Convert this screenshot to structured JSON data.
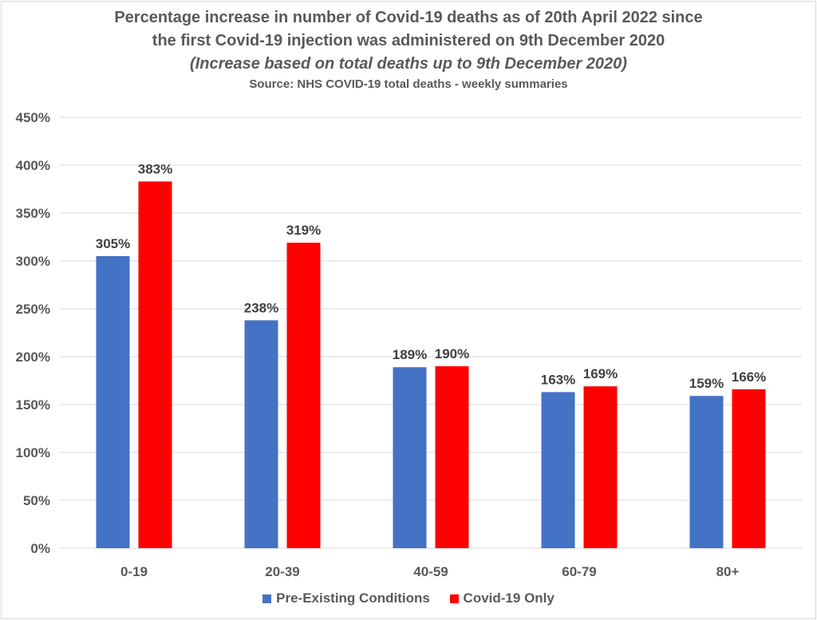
{
  "colors": {
    "series_1": "#4472c4",
    "series_2": "#ff0000",
    "grid": "#d9d9d9",
    "text": "#595959"
  },
  "chart_data": {
    "type": "bar",
    "title_lines": [
      "Percentage increase in number of Covid-19 deaths as of 20th April 2022 since",
      "the first Covid-19 injection was administered on 9th December 2020"
    ],
    "subtitle": "(Increase based on total deaths up to 9th December 2020)",
    "source": "Source: NHS COVID-19 total deaths - weekly summaries",
    "categories": [
      "0-19",
      "20-39",
      "40-59",
      "60-79",
      "80+"
    ],
    "series": [
      {
        "name": "Pre-Existing Conditions",
        "values": [
          305,
          238,
          189,
          163,
          159
        ]
      },
      {
        "name": "Covid-19 Only",
        "values": [
          383,
          319,
          190,
          169,
          166
        ]
      }
    ],
    "ylim": [
      0,
      450
    ],
    "yticks": [
      "0%",
      "50%",
      "100%",
      "150%",
      "200%",
      "250%",
      "300%",
      "350%",
      "400%",
      "450%"
    ],
    "grid": true,
    "legend_position": "bottom"
  }
}
